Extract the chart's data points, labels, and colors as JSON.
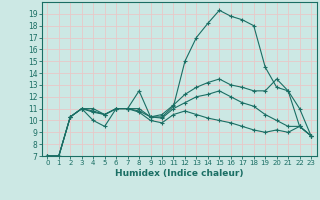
{
  "xlabel": "Humidex (Indice chaleur)",
  "xlim": [
    -0.5,
    23.5
  ],
  "ylim": [
    7,
    20
  ],
  "xticks": [
    0,
    1,
    2,
    3,
    4,
    5,
    6,
    7,
    8,
    9,
    10,
    11,
    12,
    13,
    14,
    15,
    16,
    17,
    18,
    19,
    20,
    21,
    22,
    23
  ],
  "yticks": [
    7,
    8,
    9,
    10,
    11,
    12,
    13,
    14,
    15,
    16,
    17,
    18,
    19
  ],
  "bg_color": "#cce8e4",
  "grid_color": "#b8d8d4",
  "line_color": "#1a6e64",
  "lines": [
    {
      "x": [
        0,
        1,
        2,
        3,
        4,
        5,
        6,
        7,
        8,
        9,
        10,
        11,
        12,
        13,
        14,
        15,
        16,
        17,
        18,
        19,
        20,
        21,
        22,
        23
      ],
      "y": [
        7.0,
        7.0,
        10.3,
        11.0,
        10.0,
        9.5,
        11.0,
        11.0,
        12.5,
        10.3,
        10.3,
        11.2,
        15.0,
        17.0,
        18.2,
        19.3,
        18.8,
        18.5,
        18.0,
        14.5,
        12.8,
        12.5,
        11.0,
        8.7
      ]
    },
    {
      "x": [
        0,
        1,
        2,
        3,
        4,
        5,
        6,
        7,
        8,
        9,
        10,
        11,
        12,
        13,
        14,
        15,
        16,
        17,
        18,
        19,
        20,
        21,
        22,
        23
      ],
      "y": [
        7.0,
        7.0,
        10.3,
        11.0,
        11.0,
        10.5,
        11.0,
        11.0,
        11.0,
        10.3,
        10.5,
        11.3,
        12.2,
        12.8,
        13.2,
        13.5,
        13.0,
        12.8,
        12.5,
        12.5,
        13.5,
        12.5,
        9.5,
        8.7
      ]
    },
    {
      "x": [
        0,
        1,
        2,
        3,
        4,
        5,
        6,
        7,
        8,
        9,
        10,
        11,
        12,
        13,
        14,
        15,
        16,
        17,
        18,
        19,
        20,
        21,
        22,
        23
      ],
      "y": [
        7.0,
        7.0,
        10.3,
        11.0,
        10.7,
        10.5,
        11.0,
        11.0,
        10.8,
        10.3,
        10.2,
        11.0,
        11.5,
        12.0,
        12.2,
        12.5,
        12.0,
        11.5,
        11.2,
        10.5,
        10.0,
        9.5,
        9.5,
        8.7
      ]
    },
    {
      "x": [
        0,
        1,
        2,
        3,
        4,
        5,
        6,
        7,
        8,
        9,
        10,
        11,
        12,
        13,
        14,
        15,
        16,
        17,
        18,
        19,
        20,
        21,
        22,
        23
      ],
      "y": [
        7.0,
        7.0,
        10.3,
        11.0,
        10.8,
        10.5,
        11.0,
        11.0,
        10.7,
        10.0,
        9.8,
        10.5,
        10.8,
        10.5,
        10.2,
        10.0,
        9.8,
        9.5,
        9.2,
        9.0,
        9.2,
        9.0,
        9.5,
        8.7
      ]
    }
  ]
}
